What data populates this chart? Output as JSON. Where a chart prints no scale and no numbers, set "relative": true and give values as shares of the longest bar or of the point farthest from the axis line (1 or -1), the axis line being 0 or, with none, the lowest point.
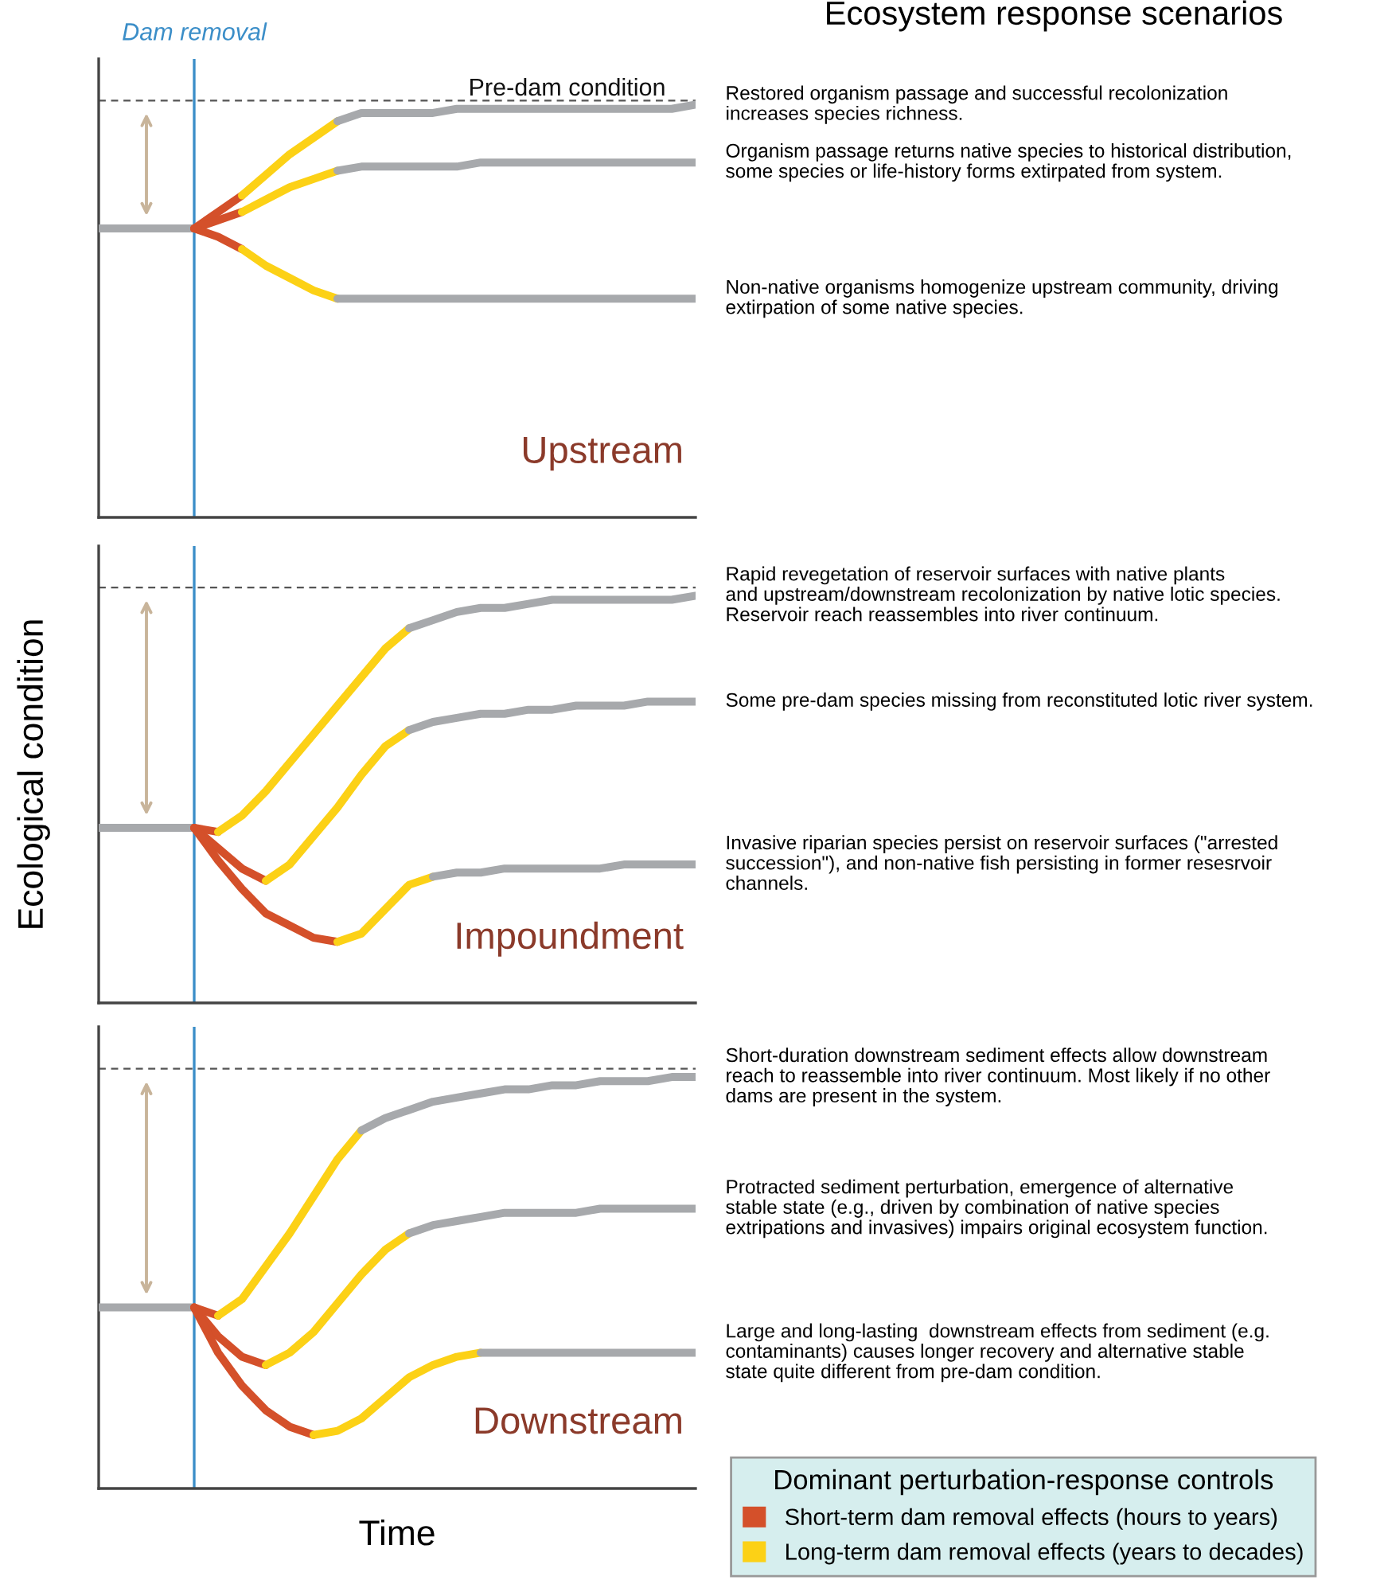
{
  "chart_data": [
    {
      "type": "line",
      "relative": true,
      "subtitle": "Upstream",
      "categories": [
        null,
        null,
        null,
        null,
        null,
        null,
        null,
        null,
        null,
        null,
        null,
        null,
        null,
        null,
        null,
        null,
        null,
        null,
        null,
        null,
        null,
        null,
        null,
        null,
        null,
        null
      ],
      "series": [
        {
          "color": "#a7a9ac",
          "values": [
            0.7,
            0.7,
            0.7,
            0.7,
            0.7,
            null,
            null,
            null,
            null,
            null,
            null,
            null,
            null,
            null,
            null,
            null,
            null,
            null,
            null,
            null,
            null,
            null,
            null,
            null,
            null,
            null
          ]
        },
        {
          "color": "#d4502a",
          "values": [
            null,
            null,
            null,
            null,
            0.7,
            0.74,
            0.78,
            null,
            null,
            null,
            null,
            null,
            null,
            null,
            null,
            null,
            null,
            null,
            null,
            null,
            null,
            null,
            null,
            null,
            null,
            null
          ]
        },
        {
          "color": "#fcd116",
          "values": [
            null,
            null,
            null,
            null,
            null,
            null,
            0.78,
            0.83,
            0.88,
            0.92,
            0.96,
            null,
            null,
            null,
            null,
            null,
            null,
            null,
            null,
            null,
            null,
            null,
            null,
            null,
            null,
            null
          ]
        },
        {
          "color": "#a7a9ac",
          "values": [
            null,
            null,
            null,
            null,
            null,
            null,
            null,
            null,
            null,
            null,
            0.96,
            0.98,
            0.98,
            0.98,
            0.98,
            0.99,
            0.99,
            0.99,
            0.99,
            0.99,
            0.99,
            0.99,
            0.99,
            0.99,
            0.99,
            1.0
          ]
        },
        {
          "color": "#d4502a",
          "values": [
            null,
            null,
            null,
            null,
            0.7,
            0.72,
            0.74,
            null,
            null,
            null,
            null,
            null,
            null,
            null,
            null,
            null,
            null,
            null,
            null,
            null,
            null,
            null,
            null,
            null,
            null,
            null
          ]
        },
        {
          "color": "#fcd116",
          "values": [
            null,
            null,
            null,
            null,
            null,
            null,
            0.74,
            0.77,
            0.8,
            0.82,
            0.84,
            null,
            null,
            null,
            null,
            null,
            null,
            null,
            null,
            null,
            null,
            null,
            null,
            null,
            null,
            null
          ]
        },
        {
          "color": "#a7a9ac",
          "values": [
            null,
            null,
            null,
            null,
            null,
            null,
            null,
            null,
            null,
            null,
            0.84,
            0.85,
            0.85,
            0.85,
            0.85,
            0.85,
            0.86,
            0.86,
            0.86,
            0.86,
            0.86,
            0.86,
            0.86,
            0.86,
            0.86,
            0.86
          ]
        },
        {
          "color": "#d4502a",
          "values": [
            null,
            null,
            null,
            null,
            0.7,
            0.68,
            0.65,
            null,
            null,
            null,
            null,
            null,
            null,
            null,
            null,
            null,
            null,
            null,
            null,
            null,
            null,
            null,
            null,
            null,
            null,
            null
          ]
        },
        {
          "color": "#fcd116",
          "values": [
            null,
            null,
            null,
            null,
            null,
            null,
            0.65,
            0.61,
            0.58,
            0.55,
            0.53,
            null,
            null,
            null,
            null,
            null,
            null,
            null,
            null,
            null,
            null,
            null,
            null,
            null,
            null,
            null
          ]
        },
        {
          "color": "#a7a9ac",
          "values": [
            null,
            null,
            null,
            null,
            null,
            null,
            null,
            null,
            null,
            null,
            0.53,
            0.53,
            0.53,
            0.53,
            0.53,
            0.53,
            0.53,
            0.53,
            0.53,
            0.53,
            0.53,
            0.53,
            0.53,
            0.53,
            0.53,
            0.53
          ]
        }
      ],
      "ref_lines": [
        {
          "axis": "y",
          "value": 1.01,
          "label": "Pre-dam condition",
          "color": "#555555",
          "line_style": "dashed"
        }
      ],
      "annotations": [
        "Dam removal",
        "Ecosystem response scenarios",
        "Restored organism passage and successful recolonization\nincreases species richness.",
        "Organism passage returns native species to historical distribution,\nsome species or life-history forms extirpated from system.",
        "Non-native organisms homogenize upstream community, driving\nextirpation of some native species."
      ]
    },
    {
      "type": "line",
      "relative": true,
      "subtitle": "Impoundment",
      "ylabel": "Ecological condition",
      "categories": [
        null,
        null,
        null,
        null,
        null,
        null,
        null,
        null,
        null,
        null,
        null,
        null,
        null,
        null,
        null,
        null,
        null,
        null,
        null,
        null,
        null,
        null,
        null,
        null,
        null,
        null
      ],
      "series": [
        {
          "color": "#a7a9ac",
          "values": [
            0.43,
            0.43,
            0.43,
            0.43,
            0.43,
            null,
            null,
            null,
            null,
            null,
            null,
            null,
            null,
            null,
            null,
            null,
            null,
            null,
            null,
            null,
            null,
            null,
            null,
            null,
            null,
            null
          ]
        },
        {
          "color": "#d4502a",
          "values": [
            null,
            null,
            null,
            null,
            0.43,
            0.42,
            null,
            null,
            null,
            null,
            null,
            null,
            null,
            null,
            null,
            null,
            null,
            null,
            null,
            null,
            null,
            null,
            null,
            null,
            null,
            null
          ]
        },
        {
          "color": "#fcd116",
          "values": [
            null,
            null,
            null,
            null,
            null,
            0.42,
            0.46,
            0.52,
            0.59,
            0.66,
            0.73,
            0.8,
            0.87,
            0.92,
            null,
            null,
            null,
            null,
            null,
            null,
            null,
            null,
            null,
            null,
            null,
            null
          ]
        },
        {
          "color": "#a7a9ac",
          "values": [
            null,
            null,
            null,
            null,
            null,
            null,
            null,
            null,
            null,
            null,
            null,
            null,
            null,
            0.92,
            0.94,
            0.96,
            0.97,
            0.97,
            0.98,
            0.99,
            0.99,
            0.99,
            0.99,
            0.99,
            0.99,
            1.0
          ]
        },
        {
          "color": "#d4502a",
          "values": [
            null,
            null,
            null,
            null,
            0.43,
            0.38,
            0.33,
            0.3,
            null,
            null,
            null,
            null,
            null,
            null,
            null,
            null,
            null,
            null,
            null,
            null,
            null,
            null,
            null,
            null,
            null,
            null
          ]
        },
        {
          "color": "#fcd116",
          "values": [
            null,
            null,
            null,
            null,
            null,
            null,
            null,
            0.3,
            0.34,
            0.41,
            0.48,
            0.56,
            0.63,
            0.67,
            null,
            null,
            null,
            null,
            null,
            null,
            null,
            null,
            null,
            null,
            null,
            null
          ]
        },
        {
          "color": "#a7a9ac",
          "values": [
            null,
            null,
            null,
            null,
            null,
            null,
            null,
            null,
            null,
            null,
            null,
            null,
            null,
            0.67,
            0.69,
            0.7,
            0.71,
            0.71,
            0.72,
            0.72,
            0.73,
            0.73,
            0.73,
            0.74,
            0.74,
            0.74
          ]
        },
        {
          "color": "#d4502a",
          "values": [
            null,
            null,
            null,
            null,
            0.43,
            0.35,
            0.28,
            0.22,
            0.19,
            0.16,
            0.15,
            null,
            null,
            null,
            null,
            null,
            null,
            null,
            null,
            null,
            null,
            null,
            null,
            null,
            null,
            null
          ]
        },
        {
          "color": "#fcd116",
          "values": [
            null,
            null,
            null,
            null,
            null,
            null,
            null,
            null,
            null,
            null,
            0.15,
            0.17,
            0.23,
            0.29,
            0.31,
            null,
            null,
            null,
            null,
            null,
            null,
            null,
            null,
            null,
            null,
            null
          ]
        },
        {
          "color": "#a7a9ac",
          "values": [
            null,
            null,
            null,
            null,
            null,
            null,
            null,
            null,
            null,
            null,
            null,
            null,
            null,
            null,
            0.31,
            0.32,
            0.32,
            0.33,
            0.33,
            0.33,
            0.33,
            0.33,
            0.34,
            0.34,
            0.34,
            0.34
          ]
        }
      ],
      "ref_lines": [
        {
          "axis": "y",
          "value": 1.02,
          "color": "#555555",
          "line_style": "dashed"
        }
      ],
      "annotations": [
        "Rapid revegetation of reservoir surfaces with native plants\nand upstream/downstream recolonization by native lotic species.\nReservoir reach reassembles into river continuum.",
        "Some pre-dam species missing from reconstituted lotic river system.",
        "Invasive riparian species persist on reservoir surfaces (\"arrested\nsuccession\"), and non-native fish persisting in former resesrvoir\nchannels."
      ]
    },
    {
      "type": "line",
      "relative": true,
      "subtitle": "Downstream",
      "xlabel": "Time",
      "legend": "bottom right",
      "legend_title": "Dominant perturbation-response controls",
      "categories": [
        null,
        null,
        null,
        null,
        null,
        null,
        null,
        null,
        null,
        null,
        null,
        null,
        null,
        null,
        null,
        null,
        null,
        null,
        null,
        null,
        null,
        null,
        null,
        null,
        null,
        null
      ],
      "series": [
        {
          "color": "#a7a9ac",
          "values": [
            0.44,
            0.44,
            0.44,
            0.44,
            0.44,
            null,
            null,
            null,
            null,
            null,
            null,
            null,
            null,
            null,
            null,
            null,
            null,
            null,
            null,
            null,
            null,
            null,
            null,
            null,
            null,
            null
          ]
        },
        {
          "name": "Short-term dam removal effects (hours to years)",
          "color": "#d4502a",
          "values": [
            null,
            null,
            null,
            null,
            0.44,
            0.42,
            null,
            null,
            null,
            null,
            null,
            null,
            null,
            null,
            null,
            null,
            null,
            null,
            null,
            null,
            null,
            null,
            null,
            null,
            null,
            null
          ]
        },
        {
          "name": "Long-term dam removal effects (years to decades)",
          "color": "#fcd116",
          "values": [
            null,
            null,
            null,
            null,
            null,
            0.42,
            0.46,
            0.54,
            0.62,
            0.71,
            0.8,
            0.87,
            null,
            null,
            null,
            null,
            null,
            null,
            null,
            null,
            null,
            null,
            null,
            null,
            null,
            null
          ]
        },
        {
          "color": "#a7a9ac",
          "values": [
            null,
            null,
            null,
            null,
            null,
            null,
            null,
            null,
            null,
            null,
            null,
            0.87,
            0.9,
            0.92,
            0.94,
            0.95,
            0.96,
            0.97,
            0.97,
            0.98,
            0.98,
            0.99,
            0.99,
            0.99,
            1.0,
            1.0
          ]
        },
        {
          "color": "#d4502a",
          "values": [
            null,
            null,
            null,
            null,
            0.44,
            0.37,
            0.32,
            0.3,
            null,
            null,
            null,
            null,
            null,
            null,
            null,
            null,
            null,
            null,
            null,
            null,
            null,
            null,
            null,
            null,
            null,
            null
          ]
        },
        {
          "color": "#fcd116",
          "values": [
            null,
            null,
            null,
            null,
            null,
            null,
            null,
            0.3,
            0.33,
            0.38,
            0.45,
            0.52,
            0.58,
            0.62,
            null,
            null,
            null,
            null,
            null,
            null,
            null,
            null,
            null,
            null,
            null,
            null
          ]
        },
        {
          "color": "#a7a9ac",
          "values": [
            null,
            null,
            null,
            null,
            null,
            null,
            null,
            null,
            null,
            null,
            null,
            null,
            null,
            0.62,
            0.64,
            0.65,
            0.66,
            0.67,
            0.67,
            0.67,
            0.67,
            0.68,
            0.68,
            0.68,
            0.68,
            0.68
          ]
        },
        {
          "color": "#d4502a",
          "values": [
            null,
            null,
            null,
            null,
            0.44,
            0.33,
            0.25,
            0.19,
            0.15,
            0.13,
            null,
            null,
            null,
            null,
            null,
            null,
            null,
            null,
            null,
            null,
            null,
            null,
            null,
            null,
            null,
            null
          ]
        },
        {
          "color": "#fcd116",
          "values": [
            null,
            null,
            null,
            null,
            null,
            null,
            null,
            null,
            null,
            0.13,
            0.14,
            0.17,
            0.22,
            0.27,
            0.3,
            0.32,
            0.33,
            null,
            null,
            null,
            null,
            null,
            null,
            null,
            null,
            null
          ]
        },
        {
          "color": "#a7a9ac",
          "values": [
            null,
            null,
            null,
            null,
            null,
            null,
            null,
            null,
            null,
            null,
            null,
            null,
            null,
            null,
            null,
            null,
            0.33,
            0.33,
            0.33,
            0.33,
            0.33,
            0.33,
            0.33,
            0.33,
            0.33,
            0.33
          ]
        }
      ],
      "ref_lines": [
        {
          "axis": "y",
          "value": 1.02,
          "color": "#555555",
          "line_style": "dashed"
        }
      ],
      "annotations": [
        "Short-duration downstream sediment effects allow downstream\nreach to reassemble into river continuum. Most likely if no other\ndams are present in the system.",
        "Protracted sediment perturbation, emergence of alternative\nstable state (e.g., driven by combination of native species\nextripations and invasives) impairs original ecosystem function.",
        "Large and long-lasting  downstream effects from sediment (e.g.\ncontaminants) causes longer recovery and alternative stable\nstate quite different from pre-dam condition."
      ]
    }
  ]
}
